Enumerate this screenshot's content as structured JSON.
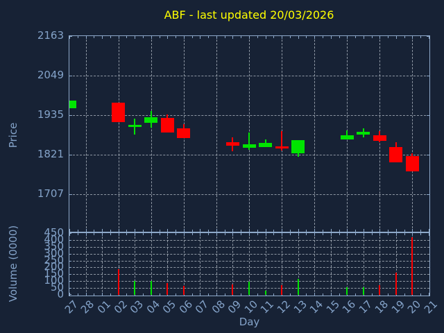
{
  "chart_data": {
    "type": "candlestick",
    "title": "ABF - last updated 20/03/2026",
    "xlabel": "Day",
    "price_axis": {
      "label": "Price",
      "ticks": [
        2163,
        2049,
        1935,
        1821,
        1707
      ],
      "ylim": [
        1601,
        2163
      ],
      "grid": "dashed"
    },
    "volume_axis": {
      "label": "Volume (0000)",
      "ticks": [
        450,
        400,
        350,
        300,
        250,
        200,
        150,
        100,
        50,
        0
      ],
      "ylim": [
        0,
        450
      ],
      "grid": "dashed"
    },
    "categories": [
      "27",
      "28",
      "01",
      "02",
      "03",
      "04",
      "05",
      "06",
      "07",
      "08",
      "09",
      "10",
      "11",
      "12",
      "13",
      "14",
      "15",
      "16",
      "17",
      "18",
      "19",
      "20",
      "21"
    ],
    "series": [
      {
        "day": "27",
        "open": 1956,
        "high": 1978,
        "low": 1956,
        "close": 1978,
        "volume": 0
      },
      {
        "day": "02",
        "open": 1971,
        "high": 1971,
        "low": 1915,
        "close": 1915,
        "volume": 185
      },
      {
        "day": "03",
        "open": 1902,
        "high": 1925,
        "low": 1880,
        "close": 1907,
        "volume": 100
      },
      {
        "day": "04",
        "open": 1914,
        "high": 1947,
        "low": 1899,
        "close": 1929,
        "volume": 103
      },
      {
        "day": "05",
        "open": 1928,
        "high": 1938,
        "low": 1887,
        "close": 1887,
        "volume": 84
      },
      {
        "day": "06",
        "open": 1898,
        "high": 1910,
        "low": 1871,
        "close": 1871,
        "volume": 64
      },
      {
        "day": "09",
        "open": 1857,
        "high": 1872,
        "low": 1832,
        "close": 1847,
        "volume": 76
      },
      {
        "day": "10",
        "open": 1842,
        "high": 1886,
        "low": 1836,
        "close": 1852,
        "volume": 96
      },
      {
        "day": "11",
        "open": 1844,
        "high": 1866,
        "low": 1844,
        "close": 1856,
        "volume": 29
      },
      {
        "day": "12",
        "open": 1846,
        "high": 1889,
        "low": 1834,
        "close": 1841,
        "volume": 71
      },
      {
        "day": "13",
        "open": 1825,
        "high": 1863,
        "low": 1815,
        "close": 1863,
        "volume": 115
      },
      {
        "day": "16",
        "open": 1865,
        "high": 1891,
        "low": 1865,
        "close": 1877,
        "volume": 56
      },
      {
        "day": "17",
        "open": 1879,
        "high": 1897,
        "low": 1872,
        "close": 1887,
        "volume": 56
      },
      {
        "day": "18",
        "open": 1878,
        "high": 1889,
        "low": 1858,
        "close": 1862,
        "volume": 71
      },
      {
        "day": "19",
        "open": 1844,
        "high": 1857,
        "low": 1800,
        "close": 1800,
        "volume": 160
      },
      {
        "day": "20",
        "open": 1818,
        "high": 1826,
        "low": 1774,
        "close": 1774,
        "volume": 420
      }
    ],
    "colors": {
      "up": "#00e400",
      "down": "#ff0000",
      "background": "#172235",
      "axis": "#8ea9ca",
      "labels": "#84a3c9",
      "grid": "#b7c0ca",
      "title": "#ffff00"
    }
  }
}
